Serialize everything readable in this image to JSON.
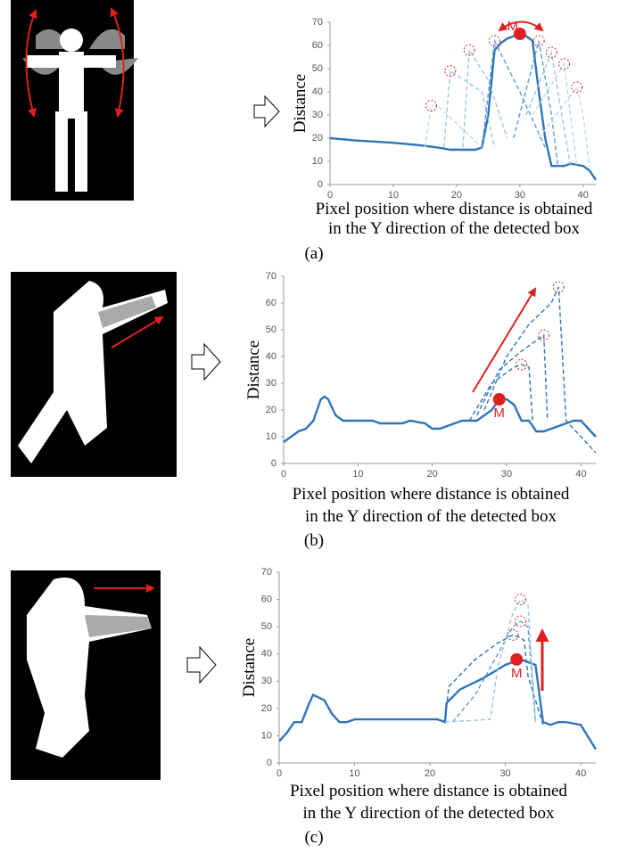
{
  "chart_data": [
    {
      "type": "line",
      "panel_label": "(a)",
      "ylabel": "Distance",
      "xlabel": [
        "Pixel position where distance is obtained",
        "in the Y direction of the detected box"
      ],
      "xlim": [
        0,
        42
      ],
      "xticks": [
        0,
        10,
        20,
        30,
        40
      ],
      "ylim": [
        0,
        70
      ],
      "yticks": [
        0,
        10,
        20,
        30,
        40,
        50,
        60,
        70
      ],
      "annotations": [
        {
          "text": "M",
          "x": 30,
          "y": 65
        }
      ],
      "series": [
        {
          "color": "#2e75b6",
          "dashed": false,
          "x": [
            0,
            4,
            10,
            14,
            17,
            19,
            23,
            24,
            25,
            26,
            27,
            28,
            29,
            30,
            31,
            32,
            33,
            34,
            35,
            37,
            38,
            40,
            41,
            42
          ],
          "values": [
            20,
            19,
            18,
            17,
            16,
            15,
            15,
            16,
            30,
            58,
            61,
            63,
            64,
            65,
            64,
            62,
            40,
            20,
            8,
            8,
            9,
            8,
            6,
            2
          ]
        },
        {
          "color": "#bdd7ee",
          "dashed": true,
          "x": [
            15,
            16,
            17,
            24
          ],
          "values": [
            16,
            34,
            34,
            16
          ]
        },
        {
          "color": "#9dc3e6",
          "dashed": true,
          "x": [
            18,
            19,
            24,
            26
          ],
          "values": [
            16,
            49,
            40,
            16
          ]
        },
        {
          "color": "#9dc3e6",
          "dashed": true,
          "x": [
            21,
            22,
            25,
            28
          ],
          "values": [
            16,
            58,
            45,
            20
          ]
        },
        {
          "color": "#5b9bd5",
          "dashed": true,
          "x": [
            24,
            26,
            30,
            34
          ],
          "values": [
            16,
            62,
            40,
            16
          ]
        },
        {
          "color": "#5b9bd5",
          "dashed": true,
          "x": [
            29,
            33,
            35,
            36
          ],
          "values": [
            20,
            62,
            30,
            8
          ]
        },
        {
          "color": "#9dc3e6",
          "dashed": true,
          "x": [
            31,
            35,
            36,
            38
          ],
          "values": [
            30,
            57,
            40,
            8
          ]
        },
        {
          "color": "#bdd7ee",
          "dashed": true,
          "x": [
            32,
            37,
            38,
            39
          ],
          "values": [
            30,
            52,
            30,
            8
          ]
        },
        {
          "color": "#bdd7ee",
          "dashed": true,
          "x": [
            33,
            39,
            40,
            41
          ],
          "values": [
            20,
            42,
            30,
            8
          ]
        }
      ]
    },
    {
      "type": "line",
      "panel_label": "(b)",
      "ylabel": "Distance",
      "xlabel": [
        "Pixel position where distance is obtained",
        "in the Y direction of the detected box"
      ],
      "xlim": [
        0,
        42
      ],
      "xticks": [
        0,
        10,
        20,
        30,
        40
      ],
      "ylim": [
        0,
        70
      ],
      "yticks": [
        0,
        10,
        20,
        30,
        40,
        50,
        60,
        70
      ],
      "annotations": [
        {
          "text": "M",
          "x": 29,
          "y": 24
        }
      ],
      "series": [
        {
          "color": "#2e75b6",
          "dashed": false,
          "x": [
            0,
            2,
            3,
            4,
            5,
            5.5,
            6,
            7,
            8,
            12,
            13,
            16,
            17,
            19,
            20,
            21,
            22,
            24,
            26,
            27,
            28,
            29,
            30,
            31,
            32,
            33,
            34,
            35,
            37,
            39,
            40,
            41,
            42
          ],
          "values": [
            8,
            12,
            13,
            16,
            24,
            25,
            24,
            18,
            16,
            16,
            15,
            15,
            16,
            15,
            13,
            13,
            14,
            16,
            16,
            18,
            20,
            24,
            24,
            22,
            16,
            16,
            12,
            12,
            14,
            16,
            16,
            13,
            10
          ]
        },
        {
          "color": "#2e75b6",
          "dashed": true,
          "x": [
            25,
            28,
            31,
            32,
            33,
            33.5
          ],
          "values": [
            16,
            30,
            36,
            37,
            36,
            16
          ]
        },
        {
          "color": "#2e75b6",
          "dashed": true,
          "x": [
            26,
            29,
            32,
            34,
            35,
            35.5
          ],
          "values": [
            18,
            35,
            42,
            46,
            48,
            16
          ]
        },
        {
          "color": "#2e75b6",
          "dashed": true,
          "x": [
            27,
            30,
            33,
            36,
            37,
            38,
            42
          ],
          "values": [
            20,
            40,
            52,
            60,
            66,
            16,
            4
          ]
        }
      ]
    },
    {
      "type": "line",
      "panel_label": "(c)",
      "ylabel": "Distance",
      "xlabel": [
        "Pixel position where distance is obtained",
        "in the Y direction of the detected box"
      ],
      "xlim": [
        0,
        42
      ],
      "xticks": [
        0,
        10,
        20,
        30,
        40
      ],
      "ylim": [
        0,
        70
      ],
      "yticks": [
        0,
        10,
        20,
        30,
        40,
        50,
        60,
        70
      ],
      "annotations": [
        {
          "text": "M",
          "x": 31.5,
          "y": 38
        }
      ],
      "series": [
        {
          "color": "#2e75b6",
          "dashed": false,
          "x": [
            0,
            1,
            2,
            3,
            4,
            4.5,
            6,
            7,
            8,
            9,
            10,
            21,
            22,
            22.2,
            24,
            27,
            30,
            31,
            32,
            33,
            34,
            35,
            36,
            37,
            38,
            40,
            42
          ],
          "values": [
            8,
            11,
            15,
            15,
            22,
            25,
            23,
            18,
            15,
            15,
            16,
            16,
            15,
            22,
            27,
            31,
            36,
            37,
            38,
            37,
            36,
            15,
            14,
            15,
            15,
            14,
            5
          ]
        },
        {
          "color": "#2e75b6",
          "dashed": true,
          "x": [
            22,
            22.5,
            26,
            29,
            31,
            32,
            32.5,
            33,
            35
          ],
          "values": [
            15,
            28,
            38,
            44,
            47,
            46,
            45,
            32,
            14
          ]
        },
        {
          "color": "#5b9bd5",
          "dashed": true,
          "x": [
            23,
            26,
            31,
            32,
            33,
            34
          ],
          "values": [
            15,
            25,
            50,
            52,
            50,
            15
          ]
        },
        {
          "color": "#9dc3e6",
          "dashed": true,
          "x": [
            22,
            28,
            29,
            31,
            32,
            33,
            34
          ],
          "values": [
            15,
            16,
            35,
            55,
            60,
            58,
            15
          ]
        }
      ]
    }
  ]
}
